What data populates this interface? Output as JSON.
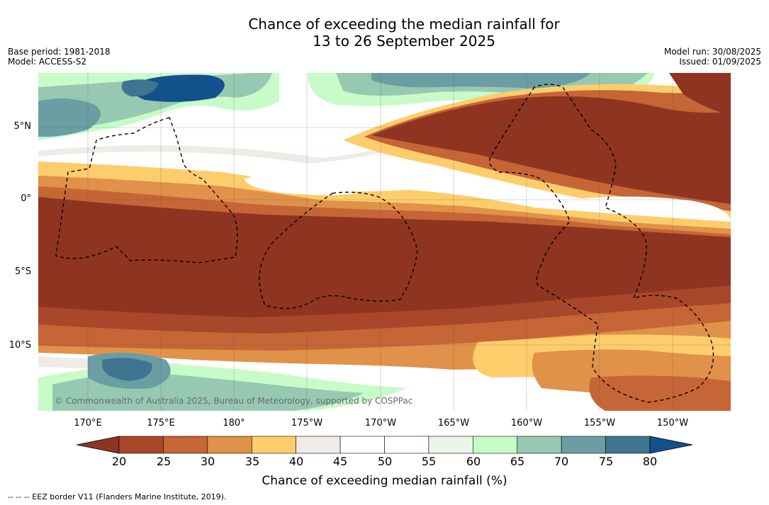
{
  "title": {
    "line1": "Chance of exceeding the median rainfall for",
    "line2": "13 to 26 September 2025"
  },
  "info": {
    "base_period": "Base period: 1981-2018",
    "model": "Model: ACCESS-S2",
    "model_run": "Model run: 30/08/2025",
    "issued": "Issued: 01/09/2025"
  },
  "map": {
    "lat_labels": [
      "5°N",
      "0°",
      "5°S",
      "10°S"
    ],
    "lon_labels": [
      "170°E",
      "175°E",
      "180°",
      "175°W",
      "170°W",
      "165°W",
      "160°W",
      "155°W",
      "150°W"
    ],
    "copyright": "© Commonwealth of Australia 2025, Bureau of Meteorology, supported by COSPPac"
  },
  "colorbar": {
    "label": "Chance of exceeding median rainfall (%)",
    "ticks": [
      "20",
      "25",
      "30",
      "35",
      "40",
      "45",
      "50",
      "55",
      "60",
      "65",
      "70",
      "75",
      "80"
    ],
    "colors": [
      "#8f3420",
      "#a9472a",
      "#c66535",
      "#e0914a",
      "#fdcd6c",
      "#efebe7",
      "#ffffff",
      "#ffffff",
      "#e9f5e7",
      "#c7fbc8",
      "#97c9b2",
      "#6a9ea3",
      "#3f7590",
      "#13518d"
    ]
  },
  "footer": {
    "eez_note": "--  --  -- EEZ border V11 (Flanders Marine Institute, 2019)."
  }
}
